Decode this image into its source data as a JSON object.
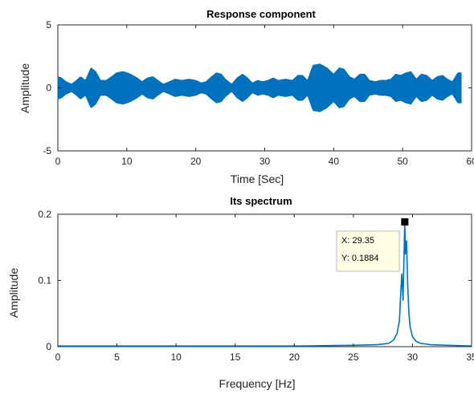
{
  "figure": {
    "background": "#ffffff",
    "line_color": "#0072BD"
  },
  "chart_data": [
    {
      "type": "line",
      "title": "Response component",
      "xlabel": "Time [Sec]",
      "ylabel": "Amplitude",
      "xlim": [
        0,
        60
      ],
      "ylim": [
        -5,
        5
      ],
      "xticks": [
        "0",
        "10",
        "20",
        "30",
        "40",
        "50",
        "60"
      ],
      "yticks": [
        "-5",
        "0",
        "5"
      ],
      "grid": false,
      "series": [
        {
          "style": "dense-oscillation-envelope",
          "t_range": [
            0,
            58.5
          ],
          "envelope": {
            "t": [
              0,
              0.5,
              1.2,
              2.0,
              2.7,
              3.3,
              4.0,
              4.8,
              5.5,
              6.2,
              7.0,
              7.8,
              8.5,
              9.5,
              10.5,
              11.5,
              12.2,
              13.0,
              13.8,
              14.5,
              15.3,
              16.2,
              17.0,
              18.0,
              19.0,
              20.0,
              20.8,
              21.5,
              22.3,
              23.0,
              23.7,
              24.3,
              25.2,
              26.0,
              26.8,
              27.5,
              28.2,
              29.0,
              29.7,
              30.5,
              31.2,
              32.0,
              33.0,
              34.0,
              34.8,
              35.5,
              36.2,
              37.0,
              38.0,
              39.0,
              40.0,
              40.8,
              41.5,
              42.3,
              43.0,
              43.8,
              44.5,
              45.2,
              46.0,
              46.8,
              47.5,
              48.3,
              49.0,
              49.7,
              50.5,
              51.2,
              52.0,
              52.7,
              53.5,
              54.3,
              55.0,
              55.8,
              56.5,
              57.2,
              58.0,
              58.5
            ],
            "a": [
              0.9,
              0.8,
              0.5,
              0.3,
              0.6,
              0.9,
              0.6,
              1.6,
              1.3,
              0.6,
              0.6,
              0.9,
              1.2,
              1.3,
              1.1,
              0.8,
              0.5,
              0.8,
              0.9,
              0.6,
              0.3,
              0.5,
              0.7,
              0.6,
              0.7,
              0.6,
              0.4,
              0.5,
              0.9,
              1.2,
              1.1,
              0.7,
              0.3,
              0.8,
              1.1,
              0.8,
              0.4,
              0.6,
              0.5,
              0.6,
              0.8,
              0.6,
              0.7,
              0.6,
              1.0,
              1.0,
              0.6,
              1.8,
              1.9,
              1.6,
              1.1,
              1.6,
              1.5,
              0.9,
              0.7,
              1.1,
              1.1,
              0.6,
              0.5,
              0.6,
              0.6,
              0.7,
              1.1,
              1.0,
              1.2,
              1.3,
              0.7,
              1.1,
              1.0,
              0.6,
              0.9,
              1.0,
              0.7,
              0.5,
              1.2,
              1.2
            ]
          }
        }
      ]
    },
    {
      "type": "line",
      "title": "Its spectrum",
      "xlabel": "Frequency [Hz]",
      "ylabel": "Amplitude",
      "xlim": [
        0,
        35
      ],
      "ylim": [
        0,
        0.2
      ],
      "xticks": [
        "0",
        "5",
        "10",
        "15",
        "20",
        "25",
        "30",
        "35"
      ],
      "yticks": [
        "0",
        "0.1",
        "0.2"
      ],
      "grid": false,
      "series": [
        {
          "style": "spectrum",
          "x": [
            0,
            5,
            10,
            15,
            20,
            25,
            27.0,
            28.0,
            28.4,
            28.7,
            28.9,
            29.0,
            29.1,
            29.2,
            29.3,
            29.35,
            29.4,
            29.5,
            29.6,
            29.7,
            29.8,
            30.0,
            30.3,
            30.7,
            31.5,
            33.0,
            35.0
          ],
          "y": [
            0.001,
            0.001,
            0.001,
            0.001,
            0.001,
            0.002,
            0.003,
            0.005,
            0.01,
            0.02,
            0.04,
            0.08,
            0.11,
            0.07,
            0.15,
            0.1884,
            0.14,
            0.16,
            0.09,
            0.05,
            0.03,
            0.015,
            0.008,
            0.005,
            0.003,
            0.002,
            0.001
          ]
        }
      ],
      "datatip": {
        "x_text": "X: 29.35",
        "y_text": "Y: 0.1884",
        "x": 29.35,
        "y": 0.1884
      }
    }
  ]
}
